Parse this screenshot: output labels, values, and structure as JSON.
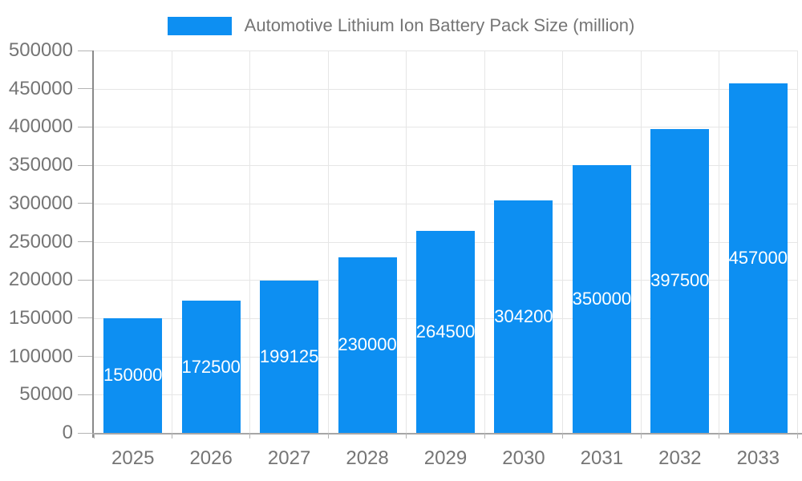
{
  "chart_data": {
    "type": "bar",
    "title": "Automotive Lithium Ion Battery Pack Size (million)",
    "categories": [
      "2025",
      "2026",
      "2027",
      "2028",
      "2029",
      "2030",
      "2031",
      "2032",
      "2033"
    ],
    "values": [
      150000,
      172500,
      199125,
      230000,
      264500,
      304200,
      350000,
      397500,
      457000
    ],
    "bar_value_labels": [
      "150000",
      "172500",
      "199125",
      "230000",
      "264500",
      "304200",
      "350000",
      "397500",
      "457000"
    ],
    "xlabel": "",
    "ylabel": "",
    "ylim": [
      0,
      500000
    ],
    "yticks": [
      0,
      50000,
      100000,
      150000,
      200000,
      250000,
      300000,
      350000,
      400000,
      450000,
      500000
    ],
    "ytick_labels": [
      "0",
      "50000",
      "100000",
      "150000",
      "200000",
      "250000",
      "300000",
      "350000",
      "400000",
      "450000",
      "500000"
    ],
    "grid": true,
    "legend": {
      "position": "top",
      "entries": [
        {
          "label": "Automotive Lithium Ion Battery Pack Size (million)",
          "color": "#0d8ff2"
        }
      ]
    },
    "colors": {
      "bar": "#0d8ff2",
      "bar_label": "#ffffff",
      "axis_text": "#757575",
      "gridline": "#e6e6e6",
      "y_axis_line": "#8a8a8a",
      "x_axis_line": "#a6a6a6",
      "tick": "#b4b4b4"
    }
  }
}
